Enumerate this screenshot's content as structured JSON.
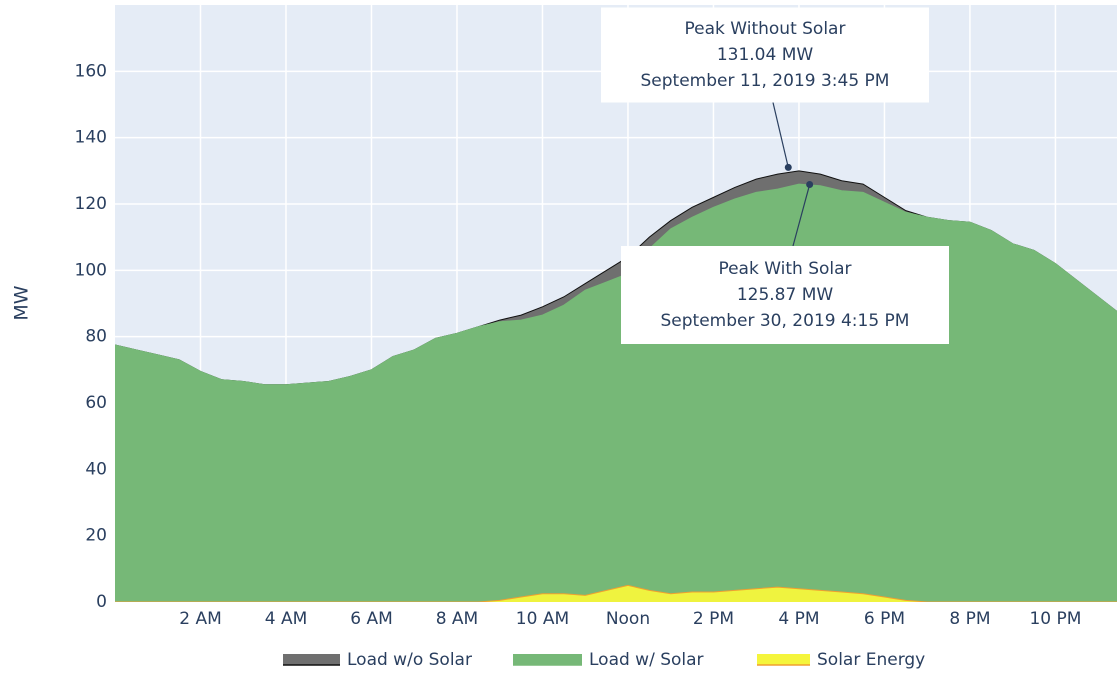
{
  "chart_data": {
    "type": "area",
    "y_axis_label": "MW",
    "x": [
      0,
      0.5,
      1,
      1.5,
      2,
      2.5,
      3,
      3.5,
      4,
      4.5,
      5,
      5.5,
      6,
      6.5,
      7,
      7.5,
      8,
      8.5,
      9,
      9.5,
      10,
      10.5,
      11,
      11.5,
      12,
      12.5,
      13,
      13.5,
      14,
      14.5,
      15,
      15.5,
      16,
      16.5,
      17,
      17.5,
      18,
      18.5,
      19,
      19.5,
      20,
      20.5,
      21,
      21.5,
      22,
      22.5,
      23,
      23.5
    ],
    "xlim": [
      0,
      23.44
    ],
    "xticks": [
      {
        "value": 2,
        "label": "2 AM"
      },
      {
        "value": 4,
        "label": "4 AM"
      },
      {
        "value": 6,
        "label": "6 AM"
      },
      {
        "value": 8,
        "label": "8 AM"
      },
      {
        "value": 10,
        "label": "10 AM"
      },
      {
        "value": 12,
        "label": "Noon"
      },
      {
        "value": 14,
        "label": "2 PM"
      },
      {
        "value": 16,
        "label": "4 PM"
      },
      {
        "value": 18,
        "label": "6 PM"
      },
      {
        "value": 20,
        "label": "8 PM"
      },
      {
        "value": 22,
        "label": "10 PM"
      }
    ],
    "ylim": [
      0,
      180
    ],
    "yticks": [
      0,
      20,
      40,
      60,
      80,
      100,
      120,
      140,
      160
    ],
    "grid": true,
    "legend": "bottom",
    "series": [
      {
        "name": "Load w/o Solar",
        "color": "#6f6f6f",
        "line_color": "#111111",
        "values": [
          77.5,
          76,
          74.5,
          73,
          69.5,
          67,
          66.5,
          65.5,
          65.5,
          66,
          66.5,
          68,
          70,
          74,
          76,
          79.5,
          81,
          83,
          85,
          86.5,
          89,
          92,
          96,
          100,
          104,
          110,
          115,
          119,
          122,
          125,
          127.5,
          129,
          130,
          129,
          127,
          126,
          122,
          118,
          116,
          115,
          114.5,
          112,
          108,
          106,
          102,
          97,
          92,
          87
        ]
      },
      {
        "name": "Load w/ Solar",
        "color": "#76b877",
        "line_color": "#76b877",
        "values": [
          77.5,
          76,
          74.5,
          73,
          69.5,
          67,
          66.5,
          65.5,
          65.5,
          66,
          66.5,
          68,
          70,
          74,
          76,
          79.5,
          81,
          83,
          84.5,
          85,
          86.5,
          89.5,
          94,
          96.5,
          99,
          106.5,
          112.5,
          116,
          119,
          121.5,
          123.5,
          124.5,
          126,
          125.5,
          124,
          123.5,
          120.5,
          117.5,
          116,
          115,
          114.5,
          112,
          108,
          106,
          102,
          97,
          92,
          87
        ]
      },
      {
        "name": "Solar Energy",
        "color": "#f5f53c",
        "line_color": "#f0a030",
        "values": [
          0,
          0,
          0,
          0,
          0,
          0,
          0,
          0,
          0,
          0,
          0,
          0,
          0,
          0,
          0,
          0,
          0,
          0,
          0.5,
          1.5,
          2.5,
          2.5,
          2,
          3.5,
          5,
          3.5,
          2.5,
          3,
          3,
          3.5,
          4,
          4.5,
          4,
          3.5,
          3,
          2.5,
          1.5,
          0.5,
          0,
          0,
          0,
          0,
          0,
          0,
          0,
          0,
          0,
          0
        ]
      }
    ],
    "annotations": [
      {
        "text": [
          "Peak Without Solar",
          "131.04 MW",
          "September 11, 2019 3:45 PM"
        ],
        "x": 15.75,
        "y": 131.04
      },
      {
        "text": [
          "Peak With Solar",
          "125.87 MW",
          "September 30, 2019 4:15 PM"
        ],
        "x": 16.25,
        "y": 125.87
      }
    ]
  }
}
